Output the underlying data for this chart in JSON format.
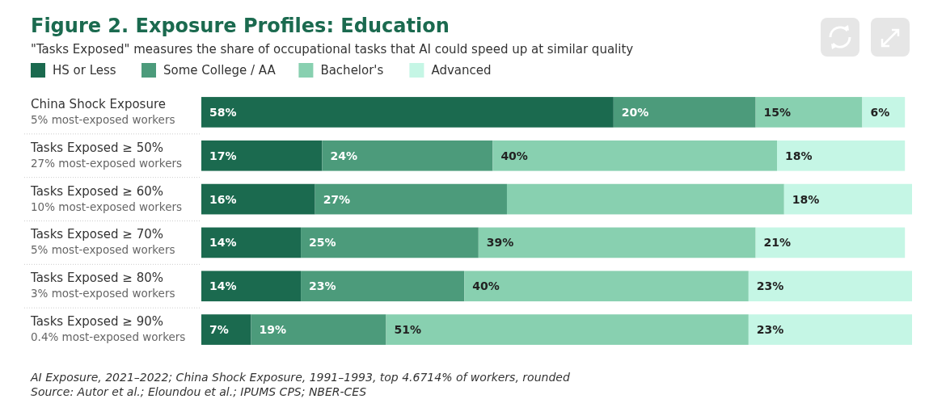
{
  "chart_data": {
    "type": "bar",
    "orientation": "horizontal",
    "stacked": true,
    "title": "Figure 2. Exposure Profiles: Education",
    "subtitle": "\"Tasks Exposed\" measures the share of occupational tasks that AI could speed up at similar quality",
    "categories": [
      "China Shock Exposure\n5% most-exposed workers",
      "Tasks Exposed ≥ 50%\n27% most-exposed workers",
      "Tasks Exposed ≥ 60%\n10% most-exposed workers",
      "Tasks Exposed ≥ 70%\n5% most-exposed workers",
      "Tasks Exposed ≥ 80%\n3% most-exposed workers",
      "Tasks Exposed ≥ 90%\n0.4% most-exposed workers"
    ],
    "series": [
      {
        "name": "HS or Less",
        "color": "#1b6a4f",
        "values": [
          58,
          17,
          16,
          14,
          14,
          7
        ],
        "value_labels": [
          "58%",
          "17%",
          "16%",
          "14%",
          "14%",
          "7%"
        ]
      },
      {
        "name": "Some College / AA",
        "color": "#4c9b7b",
        "values": [
          20,
          24,
          27,
          25,
          23,
          19
        ],
        "value_labels": [
          "20%",
          "24%",
          "27%",
          "25%",
          "23%",
          "19%"
        ]
      },
      {
        "name": "Bachelor's",
        "color": "#88d0b0",
        "values": [
          15,
          40,
          39,
          39,
          40,
          51
        ],
        "value_labels": [
          "15%",
          "40%",
          null,
          "39%",
          "40%",
          "51%"
        ]
      },
      {
        "name": "Advanced",
        "color": "#c5f6e5",
        "values": [
          6,
          18,
          18,
          21,
          23,
          23
        ],
        "value_labels": [
          "6%",
          "18%",
          "18%",
          "21%",
          "23%",
          "23%"
        ]
      }
    ],
    "xlim": [
      0,
      100
    ],
    "tick_labels": "y",
    "legend": "top left",
    "annotations": [
      "AI Exposure, 2021–2022; China Shock Exposure, 1991–1993, top 4.6714% of workers, rounded",
      "Source: Autor et al.; Eloundou et al.; IPUMS CPS; NBER-CES"
    ]
  }
}
